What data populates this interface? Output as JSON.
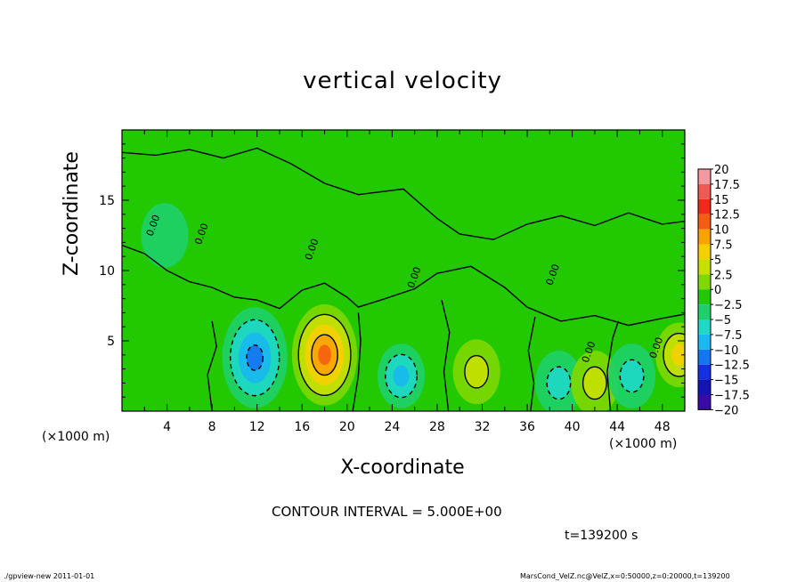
{
  "chart_data": {
    "type": "heatmap",
    "title": "vertical velocity",
    "xlabel": "X-coordinate",
    "ylabel": "Z-coordinate",
    "x_unit_left": "(×1000 m)",
    "x_unit_right": "(×1000 m)",
    "xlim": [
      0,
      50
    ],
    "ylim": [
      0,
      20
    ],
    "xticks": [
      4,
      8,
      12,
      16,
      20,
      24,
      28,
      32,
      36,
      40,
      44,
      48
    ],
    "yticks": [
      5,
      10,
      15
    ],
    "colorbar": {
      "levels": [
        20,
        17.5,
        15,
        12.5,
        10,
        7.5,
        5,
        2.5,
        0,
        -2.5,
        -5,
        -7.5,
        -10,
        -12.5,
        -15,
        -17.5,
        -20
      ],
      "labels": [
        "20",
        "17.5",
        "15",
        "12.5",
        "10",
        "7.5",
        "5",
        "2.5",
        "0",
        "−2.5",
        "−5",
        "−7.5",
        "−10",
        "−12.5",
        "−15",
        "−17.5",
        "−20"
      ],
      "colors": [
        "#f29aa0",
        "#ef5a52",
        "#ee2a1a",
        "#f45e10",
        "#f8a300",
        "#f5d000",
        "#c7e000",
        "#7fd800",
        "#22c800",
        "#1ed06a",
        "#1ed8c8",
        "#18b8f0",
        "#1476f0",
        "#1430e0",
        "#1414b4",
        "#3a0aa8",
        "#6a0aa8"
      ]
    },
    "features": [
      {
        "x": 18.0,
        "z": 4.0,
        "value": 12.0,
        "kind": "updraft"
      },
      {
        "x": 11.8,
        "z": 3.8,
        "value": -11.0,
        "kind": "downdraft"
      },
      {
        "x": 24.8,
        "z": 2.5,
        "value": -8.5,
        "kind": "downdraft"
      },
      {
        "x": 31.5,
        "z": 2.8,
        "value": 6.0,
        "kind": "updraft"
      },
      {
        "x": 38.8,
        "z": 2.0,
        "value": -6.0,
        "kind": "downdraft"
      },
      {
        "x": 42.0,
        "z": 2.0,
        "value": 5.0,
        "kind": "updraft"
      },
      {
        "x": 45.3,
        "z": 2.5,
        "value": -6.0,
        "kind": "downdraft"
      },
      {
        "x": 49.5,
        "z": 4.0,
        "value": 8.0,
        "kind": "updraft"
      },
      {
        "x": 3.8,
        "z": 12.5,
        "value": -3.5,
        "kind": "downdraft"
      }
    ],
    "contour_labels": [
      "0.00",
      "0.00",
      "0.00",
      "0.00",
      "0.00",
      "0.00",
      "0.00"
    ],
    "contour_interval": "CONTOUR INTERVAL = 5.000E+00",
    "time": "t=139200 s"
  },
  "footer": {
    "left": "./gpview-new   2011-01-01",
    "right": "MarsCond_VelZ.nc@VelZ,x=0:50000,z=0:20000,t=139200"
  }
}
